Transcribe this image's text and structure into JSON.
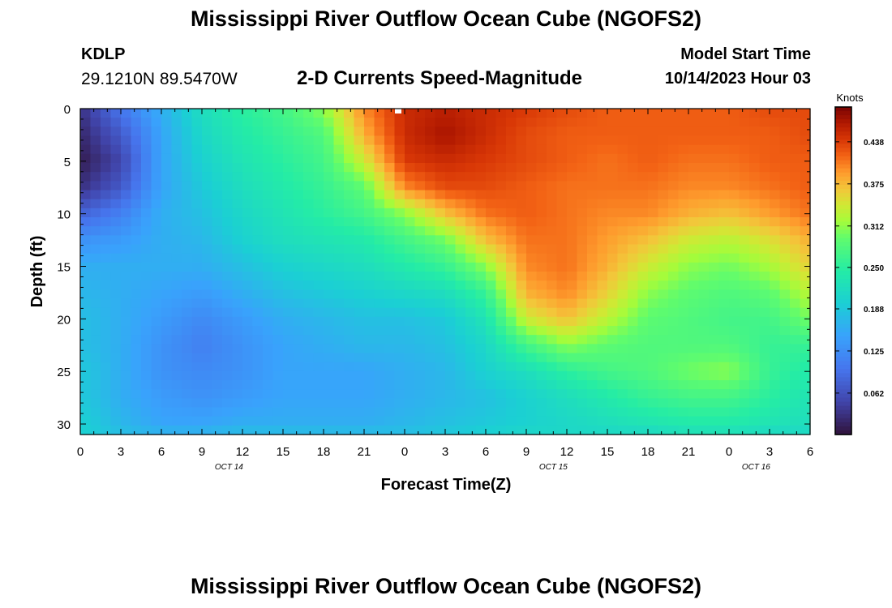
{
  "header": {
    "title": "Mississippi River Outflow Ocean Cube (NGOFS2)",
    "station_id": "KDLP",
    "coordinates": "29.1210N  89.5470W",
    "subtitle": "2-D Currents Speed-Magnitude",
    "model_start_label": "Model Start Time",
    "model_start_value": "10/14/2023 Hour 03"
  },
  "footer": {
    "title": "Mississippi River Outflow Ocean Cube (NGOFS2)"
  },
  "chart_data": {
    "type": "heatmap",
    "xlabel": "Forecast Time(Z)",
    "ylabel": "Depth (ft)",
    "x_hours_from_oct14_00z": [
      0,
      3,
      6,
      9,
      12,
      15,
      18,
      21,
      24,
      27,
      30,
      33,
      36,
      39,
      42,
      45,
      48,
      51,
      54
    ],
    "x_tick_labels": [
      "0",
      "3",
      "6",
      "9",
      "12",
      "15",
      "18",
      "21",
      "0",
      "3",
      "6",
      "9",
      "12",
      "15",
      "18",
      "21",
      "0",
      "3",
      "6"
    ],
    "date_labels": [
      {
        "text": "OCT 14",
        "hour": 11
      },
      {
        "text": "OCT 15",
        "hour": 35
      },
      {
        "text": "OCT 16",
        "hour": 50
      }
    ],
    "ylim": [
      0,
      31
    ],
    "y_ticks": [
      0,
      5,
      10,
      15,
      20,
      25,
      30
    ],
    "depths_ft": [
      0,
      2.5,
      5,
      7.5,
      10,
      12.5,
      15,
      17.5,
      20,
      22.5,
      25,
      27.5,
      30,
      31
    ],
    "speed_knots": [
      [
        0.03,
        0.1,
        0.16,
        0.22,
        0.25,
        0.27,
        0.31,
        0.4,
        0.45,
        0.46,
        0.45,
        0.44,
        0.43,
        0.42,
        0.42,
        0.42,
        0.42,
        0.43,
        0.43
      ],
      [
        0.02,
        0.07,
        0.15,
        0.21,
        0.24,
        0.26,
        0.28,
        0.38,
        0.45,
        0.47,
        0.45,
        0.43,
        0.42,
        0.42,
        0.42,
        0.42,
        0.42,
        0.42,
        0.43
      ],
      [
        0.01,
        0.05,
        0.15,
        0.2,
        0.23,
        0.25,
        0.27,
        0.34,
        0.44,
        0.45,
        0.44,
        0.43,
        0.42,
        0.41,
        0.42,
        0.41,
        0.41,
        0.42,
        0.42
      ],
      [
        0.03,
        0.07,
        0.15,
        0.19,
        0.22,
        0.24,
        0.26,
        0.29,
        0.4,
        0.43,
        0.43,
        0.42,
        0.41,
        0.41,
        0.41,
        0.4,
        0.4,
        0.41,
        0.42
      ],
      [
        0.08,
        0.11,
        0.16,
        0.18,
        0.21,
        0.23,
        0.25,
        0.27,
        0.31,
        0.37,
        0.41,
        0.42,
        0.41,
        0.4,
        0.4,
        0.38,
        0.37,
        0.39,
        0.41
      ],
      [
        0.13,
        0.14,
        0.16,
        0.17,
        0.2,
        0.22,
        0.23,
        0.24,
        0.27,
        0.3,
        0.37,
        0.41,
        0.41,
        0.39,
        0.37,
        0.34,
        0.33,
        0.35,
        0.38
      ],
      [
        0.16,
        0.16,
        0.16,
        0.16,
        0.18,
        0.2,
        0.21,
        0.22,
        0.24,
        0.26,
        0.31,
        0.4,
        0.41,
        0.38,
        0.34,
        0.31,
        0.3,
        0.32,
        0.36
      ],
      [
        0.17,
        0.16,
        0.15,
        0.14,
        0.16,
        0.18,
        0.19,
        0.2,
        0.21,
        0.22,
        0.26,
        0.38,
        0.4,
        0.36,
        0.31,
        0.29,
        0.28,
        0.29,
        0.33
      ],
      [
        0.18,
        0.16,
        0.14,
        0.12,
        0.14,
        0.16,
        0.17,
        0.18,
        0.18,
        0.19,
        0.23,
        0.34,
        0.37,
        0.33,
        0.29,
        0.28,
        0.27,
        0.27,
        0.3
      ],
      [
        0.18,
        0.16,
        0.13,
        0.11,
        0.13,
        0.15,
        0.16,
        0.17,
        0.17,
        0.18,
        0.21,
        0.27,
        0.31,
        0.29,
        0.28,
        0.28,
        0.28,
        0.26,
        0.26
      ],
      [
        0.19,
        0.16,
        0.13,
        0.12,
        0.13,
        0.15,
        0.15,
        0.15,
        0.16,
        0.17,
        0.2,
        0.22,
        0.25,
        0.27,
        0.28,
        0.3,
        0.31,
        0.26,
        0.24
      ],
      [
        0.19,
        0.16,
        0.14,
        0.13,
        0.14,
        0.15,
        0.15,
        0.15,
        0.16,
        0.17,
        0.18,
        0.2,
        0.22,
        0.24,
        0.26,
        0.27,
        0.27,
        0.25,
        0.23
      ],
      [
        0.2,
        0.17,
        0.15,
        0.15,
        0.16,
        0.16,
        0.16,
        0.16,
        0.17,
        0.18,
        0.19,
        0.2,
        0.21,
        0.22,
        0.23,
        0.24,
        0.24,
        0.23,
        0.22
      ],
      [
        0.2,
        0.18,
        0.17,
        0.17,
        0.18,
        0.18,
        0.18,
        0.18,
        0.18,
        0.19,
        0.2,
        0.21,
        0.21,
        0.21,
        0.21,
        0.22,
        0.22,
        0.21,
        0.21
      ]
    ],
    "colorbar": {
      "unit": "Knots",
      "ticks": [
        "0.438",
        "0.375",
        "0.312",
        "0.250",
        "0.188",
        "0.125",
        "0.062"
      ],
      "range": [
        0,
        0.49
      ]
    }
  }
}
